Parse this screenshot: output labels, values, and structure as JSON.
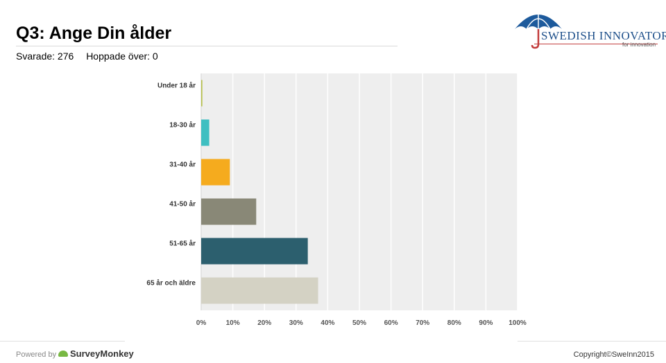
{
  "header": {
    "title": "Q3: Ange Din ålder",
    "answered": "Svarade: 276",
    "skipped": "Hoppade över: 0"
  },
  "logo": {
    "name": "SWEDISH INNOVATORS",
    "tagline": "for innovation"
  },
  "footer": {
    "powered_by": "Powered by",
    "brand": "SurveyMonkey",
    "copyright": "Copyright©SweInn2015"
  },
  "colors": {
    "plot_bg": "#eeeeee",
    "grid": "#ffffff"
  },
  "chart_data": {
    "type": "bar",
    "orientation": "horizontal",
    "categories": [
      "Under 18 år",
      "18-30 år",
      "31-40 år",
      "41-50 år",
      "51-65 år",
      "65 år och äldre"
    ],
    "values": [
      0.36,
      2.54,
      9.06,
      17.39,
      33.7,
      36.96
    ],
    "colors": [
      "#b6c04a",
      "#3fbfc1",
      "#f5ab1e",
      "#898877",
      "#2c5f6e",
      "#d4d2c4"
    ],
    "xlim": [
      0,
      100
    ],
    "xticks": [
      "0%",
      "10%",
      "20%",
      "30%",
      "40%",
      "50%",
      "60%",
      "70%",
      "80%",
      "90%",
      "100%"
    ],
    "grid": true,
    "legend": "none"
  }
}
